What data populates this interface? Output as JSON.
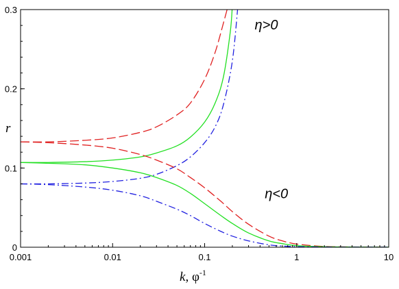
{
  "chart_data": {
    "type": "line",
    "xlabel": "k, φ⁻¹",
    "xlabel_italic_part": "k",
    "xlabel_rest": ", φ",
    "xlabel_sup": "-1",
    "ylabel": "r",
    "x_scale": "log",
    "xlim": [
      0.001,
      10
    ],
    "ylim": [
      0,
      0.3
    ],
    "x_ticks": [
      {
        "value": 0.001,
        "label": "0.001"
      },
      {
        "value": 0.01,
        "label": "0.01"
      },
      {
        "value": 0.1,
        "label": "0.1"
      },
      {
        "value": 1,
        "label": "1"
      },
      {
        "value": 10,
        "label": "10"
      }
    ],
    "y_ticks": [
      {
        "value": 0,
        "label": "0"
      },
      {
        "value": 0.1,
        "label": "0.1"
      },
      {
        "value": 0.2,
        "label": "0.2"
      },
      {
        "value": 0.3,
        "label": "0.3"
      }
    ],
    "grid": false,
    "annotations": [
      {
        "text": "η>0",
        "x": 0.35,
        "y": 0.275
      },
      {
        "text": "η<0",
        "x": 0.45,
        "y": 0.062
      }
    ],
    "series": [
      {
        "color": "#e02020",
        "style": "dashed",
        "group": "eta>0",
        "x": [
          0.001,
          0.002,
          0.005,
          0.01,
          0.02,
          0.03,
          0.05,
          0.07,
          0.1,
          0.13,
          0.16,
          0.18
        ],
        "y": [
          0.133,
          0.133,
          0.135,
          0.138,
          0.145,
          0.152,
          0.167,
          0.182,
          0.212,
          0.246,
          0.283,
          0.305
        ]
      },
      {
        "color": "#22e022",
        "style": "solid",
        "group": "eta>0",
        "x": [
          0.001,
          0.002,
          0.005,
          0.01,
          0.02,
          0.03,
          0.05,
          0.07,
          0.1,
          0.13,
          0.16,
          0.19,
          0.2
        ],
        "y": [
          0.107,
          0.107,
          0.108,
          0.11,
          0.114,
          0.119,
          0.128,
          0.139,
          0.158,
          0.182,
          0.215,
          0.272,
          0.305
        ]
      },
      {
        "color": "#2020e0",
        "style": "dashdot",
        "group": "eta>0",
        "x": [
          0.001,
          0.002,
          0.005,
          0.01,
          0.02,
          0.03,
          0.05,
          0.07,
          0.1,
          0.13,
          0.16,
          0.2,
          0.23
        ],
        "y": [
          0.08,
          0.08,
          0.081,
          0.083,
          0.087,
          0.092,
          0.103,
          0.114,
          0.132,
          0.152,
          0.18,
          0.235,
          0.305
        ]
      },
      {
        "color": "#e02020",
        "style": "dashed",
        "group": "eta<0",
        "x": [
          0.001,
          0.002,
          0.005,
          0.01,
          0.02,
          0.03,
          0.05,
          0.07,
          0.1,
          0.15,
          0.2,
          0.3,
          0.5,
          0.7,
          1,
          2,
          5,
          10
        ],
        "y": [
          0.133,
          0.132,
          0.129,
          0.125,
          0.117,
          0.11,
          0.099,
          0.088,
          0.075,
          0.058,
          0.045,
          0.029,
          0.014,
          0.008,
          0.004,
          0.001,
          0.0003,
          0.0001
        ]
      },
      {
        "color": "#22e022",
        "style": "solid",
        "group": "eta<0",
        "x": [
          0.001,
          0.002,
          0.005,
          0.01,
          0.02,
          0.03,
          0.05,
          0.07,
          0.1,
          0.15,
          0.2,
          0.3,
          0.5,
          0.7,
          1,
          2,
          5,
          10
        ],
        "y": [
          0.107,
          0.106,
          0.104,
          0.1,
          0.094,
          0.088,
          0.078,
          0.068,
          0.055,
          0.04,
          0.03,
          0.018,
          0.008,
          0.0045,
          0.002,
          0.0006,
          0.0002,
          0.0001
        ]
      },
      {
        "color": "#2020e0",
        "style": "dashdot",
        "group": "eta<0",
        "x": [
          0.001,
          0.002,
          0.005,
          0.01,
          0.02,
          0.03,
          0.05,
          0.07,
          0.1,
          0.15,
          0.2,
          0.3,
          0.5,
          0.7,
          1,
          2,
          5,
          10
        ],
        "y": [
          0.08,
          0.079,
          0.076,
          0.072,
          0.065,
          0.058,
          0.048,
          0.04,
          0.03,
          0.02,
          0.014,
          0.008,
          0.003,
          0.0015,
          0.0007,
          0.0002,
          0.0001,
          0.0001
        ]
      }
    ]
  }
}
